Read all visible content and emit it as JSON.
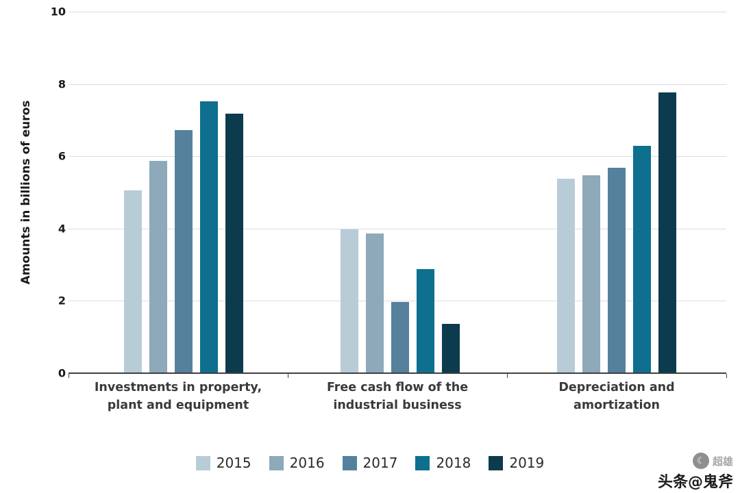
{
  "chart_data": {
    "type": "bar",
    "title": "",
    "xlabel": "",
    "ylabel": "Amounts in billions of euros",
    "ylim": [
      0,
      10
    ],
    "yticks": [
      0,
      2,
      4,
      6,
      8,
      10
    ],
    "grid": true,
    "legend_position": "bottom",
    "categories": [
      "Investments in property,\nplant and equipment",
      "Free cash flow of the\nindustrial business",
      "Depreciation and\namortization"
    ],
    "series": [
      {
        "name": "2015",
        "color": "#b8ccd8",
        "values": [
          5.05,
          3.97,
          5.38
        ]
      },
      {
        "name": "2016",
        "color": "#8da9ba",
        "values": [
          5.88,
          3.87,
          5.47
        ]
      },
      {
        "name": "2017",
        "color": "#56819c",
        "values": [
          6.72,
          1.97,
          5.68
        ]
      },
      {
        "name": "2018",
        "color": "#0e6f8e",
        "values": [
          7.52,
          2.87,
          6.29
        ]
      },
      {
        "name": "2019",
        "color": "#0b3b4d",
        "values": [
          7.18,
          1.36,
          7.77
        ]
      }
    ]
  },
  "watermark": {
    "badge_icon": "☾",
    "badge_label": "超雄",
    "text": "头条@鬼斧"
  }
}
